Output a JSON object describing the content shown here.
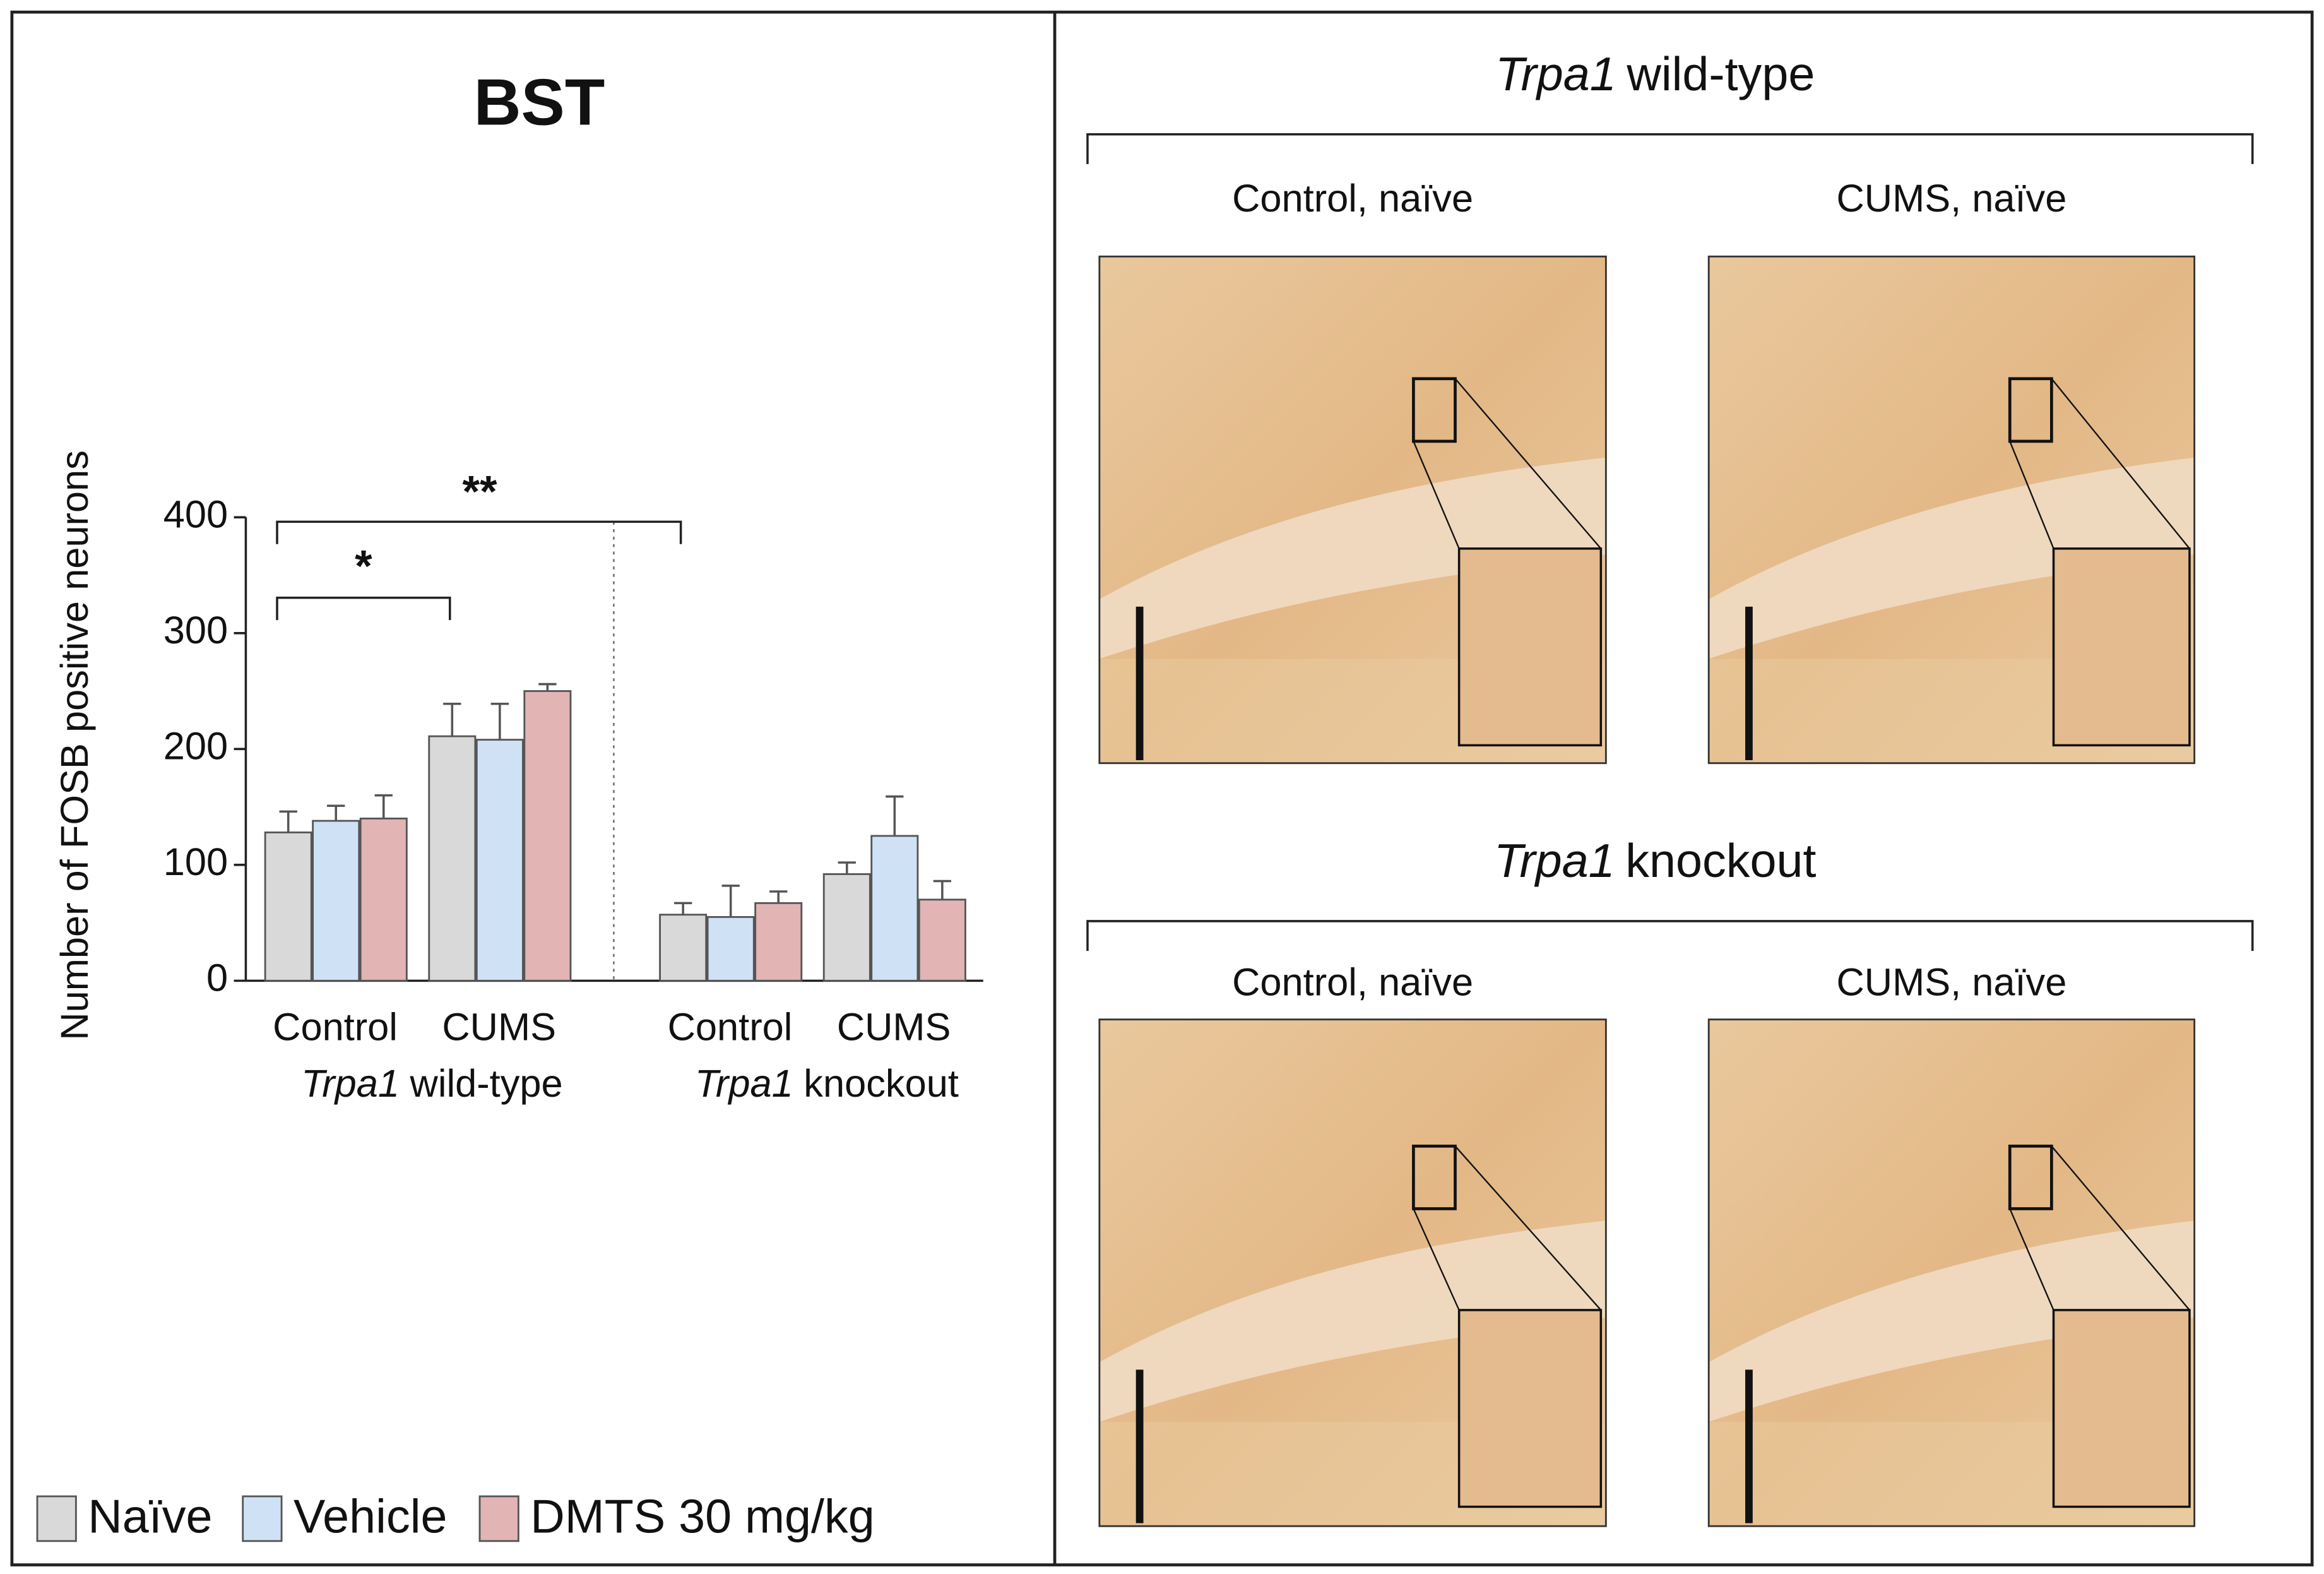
{
  "chart_data": {
    "type": "bar",
    "title": "BST",
    "y_label": "Number of FOSB positive neurons",
    "categories": [
      "Control",
      "CUMS",
      "Control",
      "CUMS"
    ],
    "groups": [
      {
        "gene": "Trpa1",
        "label": "wild-type"
      },
      {
        "gene": "Trpa1",
        "label": "knockout"
      }
    ],
    "series": [
      {
        "name": "Naïve",
        "color": "#d9d9d9",
        "values": [
          128,
          211,
          57,
          92
        ],
        "errors": [
          18,
          28,
          10,
          10
        ]
      },
      {
        "name": "Vehicle",
        "color": "#cfe2f5",
        "values": [
          138,
          208,
          55,
          125
        ],
        "errors": [
          13,
          31,
          27,
          34
        ]
      },
      {
        "name": "DMTS 30 mg/kg",
        "color": "#e2b4b4",
        "values": [
          140,
          250,
          67,
          70
        ],
        "errors": [
          20,
          6,
          10,
          16
        ]
      }
    ],
    "ylim": [
      0,
      400
    ],
    "yticks": [
      0,
      100,
      200,
      300,
      400
    ],
    "annotations": [
      {
        "text": "*"
      },
      {
        "text": "**"
      }
    ],
    "legend": "bottom"
  },
  "panels": [
    {
      "gene": "Trpa1",
      "title": "wild-type",
      "images": [
        "Control, naïve",
        "CUMS, naïve"
      ]
    },
    {
      "gene": "Trpa1",
      "title": "knockout",
      "images": [
        "Control, naïve",
        "CUMS, naïve"
      ]
    }
  ]
}
